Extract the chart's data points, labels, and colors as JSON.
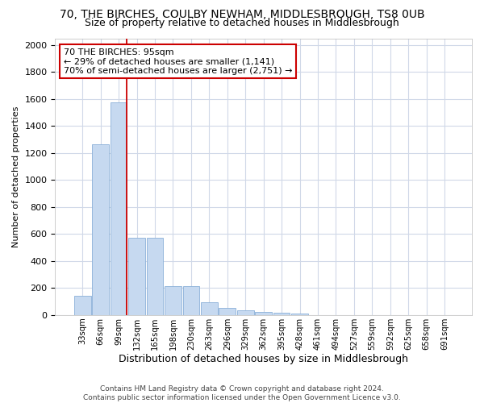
{
  "title1": "70, THE BIRCHES, COULBY NEWHAM, MIDDLESBROUGH, TS8 0UB",
  "title2": "Size of property relative to detached houses in Middlesbrough",
  "xlabel": "Distribution of detached houses by size in Middlesbrough",
  "ylabel": "Number of detached properties",
  "footnote": "Contains HM Land Registry data © Crown copyright and database right 2024.\nContains public sector information licensed under the Open Government Licence v3.0.",
  "bin_labels": [
    "33sqm",
    "66sqm",
    "99sqm",
    "132sqm",
    "165sqm",
    "198sqm",
    "230sqm",
    "263sqm",
    "296sqm",
    "329sqm",
    "362sqm",
    "395sqm",
    "428sqm",
    "461sqm",
    "494sqm",
    "527sqm",
    "559sqm",
    "592sqm",
    "625sqm",
    "658sqm",
    "691sqm"
  ],
  "bar_values": [
    140,
    1265,
    1575,
    570,
    570,
    215,
    215,
    95,
    50,
    35,
    20,
    15,
    12,
    0,
    0,
    0,
    0,
    0,
    0,
    0,
    0
  ],
  "bar_color": "#c6d9f0",
  "bar_edge_color": "#8ab0d8",
  "vline_color": "#cc0000",
  "annotation_text": "70 THE BIRCHES: 95sqm\n← 29% of detached houses are smaller (1,141)\n70% of semi-detached houses are larger (2,751) →",
  "annotation_box_color": "white",
  "annotation_box_edge": "#cc0000",
  "ylim": [
    0,
    2050
  ],
  "background_color": "#ffffff",
  "plot_bg_color": "#ffffff",
  "grid_color": "#d0d8e8",
  "title1_fontsize": 10,
  "title2_fontsize": 9,
  "xlabel_fontsize": 9,
  "ylabel_fontsize": 8,
  "footnote_fontsize": 6.5
}
